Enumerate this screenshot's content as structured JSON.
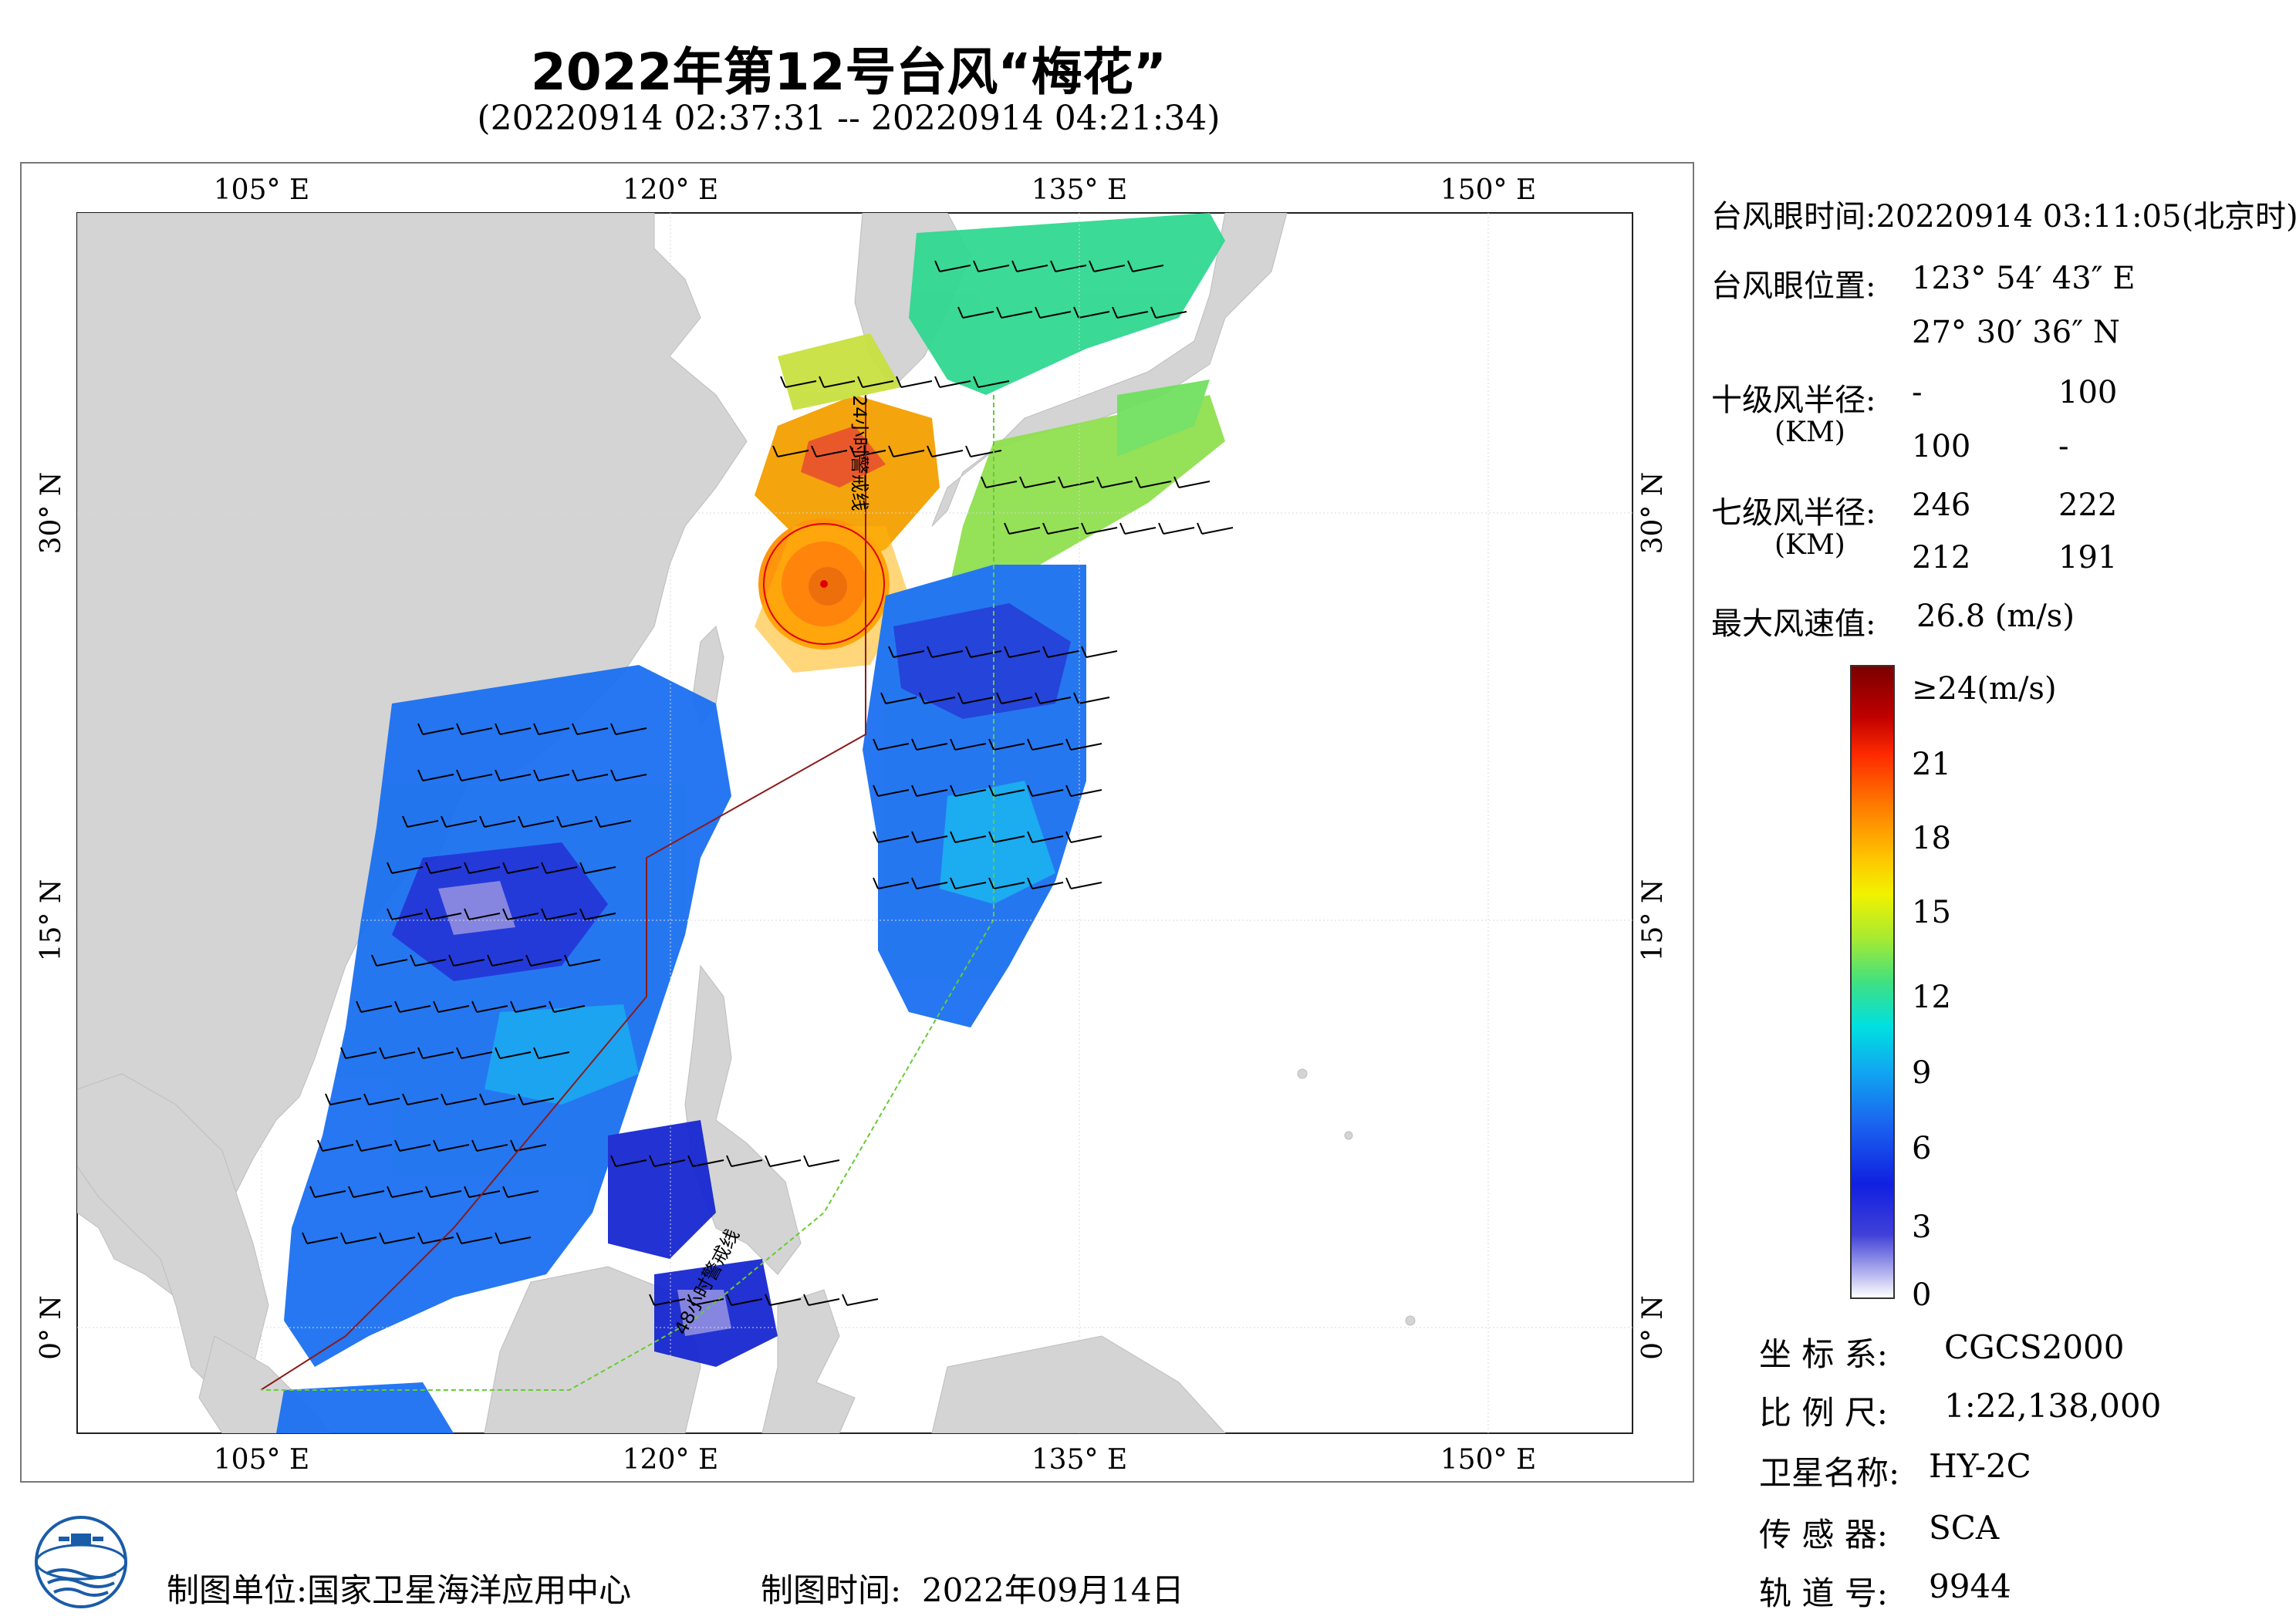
{
  "title": "2022年第12号台风“梅花”",
  "subtitle": "(20220914 02:37:31 -- 20220914 04:21:34)",
  "map": {
    "lon_labels": [
      "105° E",
      "120° E",
      "135° E",
      "150° E"
    ],
    "lat_labels": [
      "30° N",
      "15° N",
      "0° N"
    ],
    "track_label_24h": "24小时警戒线",
    "track_label_48h": "48小时警戒线",
    "typhoon_eye": {
      "lon": 123.91,
      "lat": 27.51
    }
  },
  "panel": {
    "eye_time_label": "台风眼时间:",
    "eye_time_value": "20220914 03:11:05(北京时)",
    "eye_pos_label": "台风眼位置:",
    "eye_lon": "123° 54′ 43″ E",
    "eye_lat": "27° 30′ 36″ N",
    "r10_label": "十级风半径:",
    "r10_unit": "(KM)",
    "r10_values": [
      "-",
      "100",
      "100",
      "-"
    ],
    "r7_label": "七级风半径:",
    "r7_unit": "(KM)",
    "r7_values": [
      "246",
      "222",
      "212",
      "191"
    ],
    "max_wind_label": "最大风速值:",
    "max_wind_value": "26.8  (m/s)"
  },
  "colorbar": {
    "labels": [
      "≥24(m/s)",
      "21",
      "18",
      "15",
      "12",
      "9",
      "6",
      "3",
      "0"
    ]
  },
  "meta": {
    "crs_label": "坐 标 系:",
    "crs_value": "CGCS2000",
    "scale_label": "比 例 尺:",
    "scale_value": "1:22,138,000",
    "satellite_label": "卫星名称:",
    "satellite_value": "HY-2C",
    "sensor_label": "传 感 器:",
    "sensor_value": "SCA",
    "orbit_label": "轨 道 号:",
    "orbit_value": "9944"
  },
  "footer": {
    "org_label": "制图单位:",
    "org_value": "国家卫星海洋应用中心",
    "date_label": "制图时间:",
    "date_value": "2022年09月14日"
  },
  "colors": {
    "land": "#d4d4d4",
    "ocean": "#ffffff",
    "warning_line_24h": "#8b1a1a",
    "warning_line_48h": "#66cc33",
    "typhoon_circle": "#e00000"
  }
}
